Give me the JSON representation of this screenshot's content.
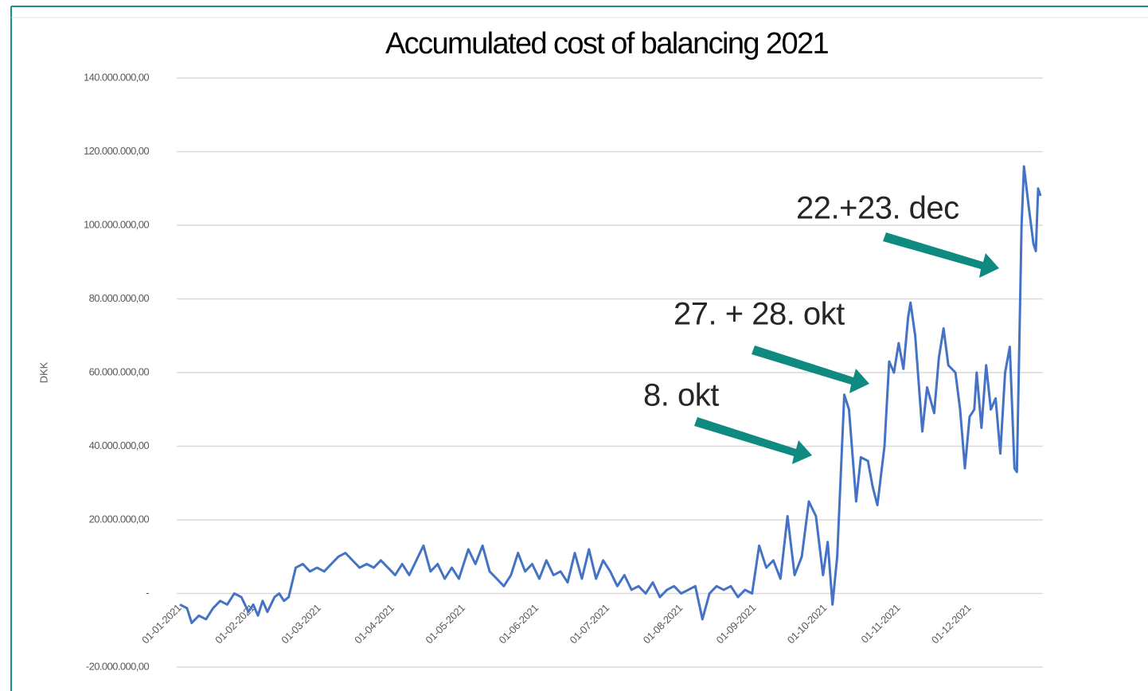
{
  "chart_data": {
    "type": "line",
    "title": "Accumulated cost of balancing 2021",
    "y_label": "DKK",
    "annotations": [
      "22.+23. dec",
      "27. + 28. okt",
      "8. okt"
    ],
    "grid": true,
    "xlim": [
      "2021-01-01",
      "2021-12-31"
    ],
    "xticks": [
      {
        "value": "2021-01-01",
        "label": "01-01-2021"
      },
      {
        "value": "2021-02-01",
        "label": "01-02-2021"
      },
      {
        "value": "2021-03-01",
        "label": "01-03-2021"
      },
      {
        "value": "2021-04-01",
        "label": "01-04-2021"
      },
      {
        "value": "2021-05-01",
        "label": "01-05-2021"
      },
      {
        "value": "2021-06-01",
        "label": "01-06-2021"
      },
      {
        "value": "2021-07-01",
        "label": "01-07-2021"
      },
      {
        "value": "2021-08-01",
        "label": "01-08-2021"
      },
      {
        "value": "2021-09-01",
        "label": "01-09-2021"
      },
      {
        "value": "2021-10-01",
        "label": "01-10-2021"
      },
      {
        "value": "2021-11-01",
        "label": "01-11-2021"
      },
      {
        "value": "2021-12-01",
        "label": "01-12-2021"
      }
    ],
    "ylim": [
      -20000000,
      140000000
    ],
    "yticks": [
      {
        "value": -20000000,
        "label": "-20.000.000,00"
      },
      {
        "value": 0,
        "label": "-"
      },
      {
        "value": 20000000,
        "label": "20.000.000,00"
      },
      {
        "value": 40000000,
        "label": "40.000.000,00"
      },
      {
        "value": 60000000,
        "label": "60.000.000,00"
      },
      {
        "value": 80000000,
        "label": "80.000.000,00"
      },
      {
        "value": 100000000,
        "label": "100.000.000,00"
      },
      {
        "value": 120000000,
        "label": "120.000.000,00"
      },
      {
        "value": 140000000,
        "label": "140.000.000,00"
      }
    ],
    "x": [
      "2021-01-01",
      "2021-01-04",
      "2021-01-06",
      "2021-01-09",
      "2021-01-12",
      "2021-01-15",
      "2021-01-18",
      "2021-01-21",
      "2021-01-24",
      "2021-01-27",
      "2021-01-30",
      "2021-02-01",
      "2021-02-03",
      "2021-02-05",
      "2021-02-07",
      "2021-02-10",
      "2021-02-12",
      "2021-02-14",
      "2021-02-16",
      "2021-02-19",
      "2021-02-22",
      "2021-02-25",
      "2021-02-28",
      "2021-03-03",
      "2021-03-06",
      "2021-03-09",
      "2021-03-12",
      "2021-03-15",
      "2021-03-18",
      "2021-03-21",
      "2021-03-24",
      "2021-03-27",
      "2021-03-30",
      "2021-04-02",
      "2021-04-05",
      "2021-04-08",
      "2021-04-11",
      "2021-04-14",
      "2021-04-17",
      "2021-04-20",
      "2021-04-23",
      "2021-04-26",
      "2021-04-29",
      "2021-05-03",
      "2021-05-06",
      "2021-05-09",
      "2021-05-12",
      "2021-05-15",
      "2021-05-18",
      "2021-05-21",
      "2021-05-24",
      "2021-05-27",
      "2021-05-30",
      "2021-06-02",
      "2021-06-05",
      "2021-06-08",
      "2021-06-11",
      "2021-06-14",
      "2021-06-17",
      "2021-06-20",
      "2021-06-23",
      "2021-06-26",
      "2021-06-29",
      "2021-07-02",
      "2021-07-05",
      "2021-07-08",
      "2021-07-11",
      "2021-07-14",
      "2021-07-17",
      "2021-07-20",
      "2021-07-23",
      "2021-07-26",
      "2021-07-29",
      "2021-08-01",
      "2021-08-04",
      "2021-08-07",
      "2021-08-10",
      "2021-08-13",
      "2021-08-16",
      "2021-08-19",
      "2021-08-22",
      "2021-08-25",
      "2021-08-28",
      "2021-08-31",
      "2021-09-03",
      "2021-09-06",
      "2021-09-09",
      "2021-09-12",
      "2021-09-15",
      "2021-09-18",
      "2021-09-21",
      "2021-09-24",
      "2021-09-27",
      "2021-09-30",
      "2021-10-02",
      "2021-10-04",
      "2021-10-06",
      "2021-10-09",
      "2021-10-11",
      "2021-10-14",
      "2021-10-16",
      "2021-10-19",
      "2021-10-21",
      "2021-10-23",
      "2021-10-26",
      "2021-10-28",
      "2021-10-30",
      "2021-11-01",
      "2021-11-03",
      "2021-11-05",
      "2021-11-06",
      "2021-11-08",
      "2021-11-11",
      "2021-11-13",
      "2021-11-16",
      "2021-11-18",
      "2021-11-20",
      "2021-11-22",
      "2021-11-25",
      "2021-11-27",
      "2021-11-29",
      "2021-12-01",
      "2021-12-03",
      "2021-12-04",
      "2021-12-06",
      "2021-12-08",
      "2021-12-10",
      "2021-12-12",
      "2021-12-14",
      "2021-12-16",
      "2021-12-18",
      "2021-12-20",
      "2021-12-21",
      "2021-12-23",
      "2021-12-24",
      "2021-12-26",
      "2021-12-28",
      "2021-12-29",
      "2021-12-30",
      "2021-12-31"
    ],
    "series": [
      {
        "name": "Accumulated cost",
        "color": "#4472c4",
        "values": [
          -3000000,
          -4000000,
          -8000000,
          -6000000,
          -7000000,
          -4000000,
          -2000000,
          -3000000,
          0,
          -1000000,
          -5000000,
          -3000000,
          -6000000,
          -2000000,
          -5000000,
          -1000000,
          0,
          -2000000,
          -1000000,
          7000000,
          8000000,
          6000000,
          7000000,
          6000000,
          8000000,
          10000000,
          11000000,
          9000000,
          7000000,
          8000000,
          7000000,
          9000000,
          7000000,
          5000000,
          8000000,
          5000000,
          9000000,
          13000000,
          6000000,
          8000000,
          4000000,
          7000000,
          4000000,
          12000000,
          8000000,
          13000000,
          6000000,
          4000000,
          2000000,
          5000000,
          11000000,
          6000000,
          8000000,
          4000000,
          9000000,
          5000000,
          6000000,
          3000000,
          11000000,
          4000000,
          12000000,
          4000000,
          9000000,
          6000000,
          2000000,
          5000000,
          1000000,
          2000000,
          0,
          3000000,
          -1000000,
          1000000,
          2000000,
          0,
          1000000,
          2000000,
          -7000000,
          0,
          2000000,
          1000000,
          2000000,
          -1000000,
          1000000,
          0,
          13000000,
          7000000,
          9000000,
          4000000,
          21000000,
          5000000,
          10000000,
          25000000,
          21000000,
          5000000,
          14000000,
          -3000000,
          10000000,
          54000000,
          50000000,
          25000000,
          37000000,
          36000000,
          29000000,
          24000000,
          40000000,
          63000000,
          60000000,
          68000000,
          61000000,
          75000000,
          79000000,
          70000000,
          44000000,
          56000000,
          49000000,
          64000000,
          72000000,
          62000000,
          60000000,
          50000000,
          34000000,
          48000000,
          50000000,
          60000000,
          45000000,
          62000000,
          50000000,
          53000000,
          38000000,
          60000000,
          67000000,
          34000000,
          33000000,
          100000000,
          116000000,
          105000000,
          95000000,
          93000000,
          110000000,
          108000000
        ]
      }
    ]
  }
}
